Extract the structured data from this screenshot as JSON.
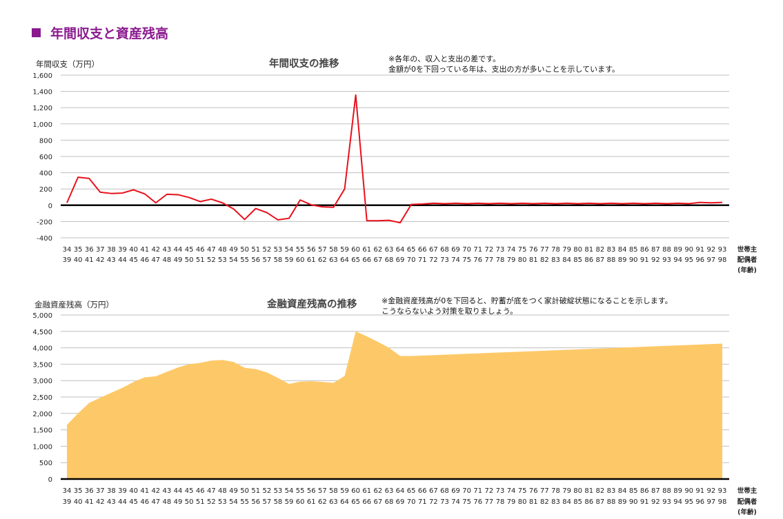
{
  "page": {
    "title_marker": "■",
    "title": "年間収支と資産残高"
  },
  "colors": {
    "title": "#8a1a8e",
    "line": "#e8101a",
    "area": "#fdc968",
    "grid": "#bfbfbf",
    "zero": "#000000"
  },
  "x_axis": {
    "head_ages": [
      "34",
      "35",
      "36",
      "37",
      "38",
      "39",
      "40",
      "41",
      "42",
      "43",
      "44",
      "45",
      "46",
      "47",
      "48",
      "49",
      "50",
      "51",
      "52",
      "53",
      "54",
      "55",
      "56",
      "57",
      "58",
      "59",
      "60",
      "61",
      "62",
      "63",
      "64",
      "65",
      "66",
      "67",
      "68",
      "69",
      "70",
      "71",
      "72",
      "73",
      "74",
      "75",
      "76",
      "77",
      "78",
      "79",
      "80",
      "81",
      "82",
      "83",
      "84",
      "85",
      "86",
      "87",
      "88",
      "89",
      "90",
      "91",
      "92",
      "93"
    ],
    "spouse_ages": [
      "39",
      "40",
      "41",
      "42",
      "43",
      "44",
      "45",
      "46",
      "47",
      "48",
      "49",
      "50",
      "51",
      "52",
      "53",
      "54",
      "55",
      "56",
      "57",
      "58",
      "59",
      "60",
      "61",
      "62",
      "63",
      "64",
      "65",
      "66",
      "67",
      "68",
      "69",
      "70",
      "71",
      "72",
      "73",
      "74",
      "75",
      "76",
      "77",
      "78",
      "79",
      "80",
      "81",
      "82",
      "83",
      "84",
      "85",
      "86",
      "87",
      "88",
      "89",
      "90",
      "91",
      "92",
      "93",
      "94",
      "95",
      "96",
      "97",
      "98"
    ],
    "label_head": "世帯主",
    "label_spouse": "配偶者",
    "label_unit": "(年齢)"
  },
  "chart_data": [
    {
      "type": "line",
      "title": "年間収支の推移",
      "ylabel": "年間収支（万円）",
      "note_lines": [
        "※各年の、収入と支出の差です。",
        "金額が0を下回っている年は、支出の方が多いことを示しています。"
      ],
      "ylim": [
        -400,
        1600
      ],
      "yticks": [
        -400,
        -200,
        0,
        200,
        400,
        600,
        800,
        1000,
        1200,
        1400,
        1600
      ],
      "ytick_labels": [
        "-400",
        "-200",
        "0",
        "200",
        "400",
        "600",
        "800",
        "1,000",
        "1,200",
        "1,400",
        "1,600"
      ],
      "grid": true,
      "series": [
        {
          "values": [
            30,
            345,
            330,
            160,
            145,
            150,
            190,
            140,
            30,
            135,
            130,
            95,
            45,
            75,
            30,
            -45,
            -175,
            -40,
            -90,
            -180,
            -160,
            65,
            5,
            -20,
            -25,
            200,
            1355,
            -190,
            -190,
            -185,
            -215,
            10,
            15,
            25,
            20,
            25,
            20,
            25,
            20,
            25,
            20,
            25,
            20,
            25,
            20,
            25,
            20,
            25,
            20,
            25,
            20,
            25,
            20,
            25,
            20,
            25,
            20,
            35,
            30,
            35
          ]
        }
      ]
    },
    {
      "type": "area",
      "title": "金融資産残高の推移",
      "ylabel": "金融資産残高（万円）",
      "note_lines": [
        "※金融資産残高が0を下回ると、貯蓄が底をつく家計破綻状態になることを示します。",
        "こうならないよう対策を取りましょう。"
      ],
      "ylim": [
        0,
        5000
      ],
      "yticks": [
        0,
        500,
        1000,
        1500,
        2000,
        2500,
        3000,
        3500,
        4000,
        4500,
        5000
      ],
      "ytick_labels": [
        "0",
        "500",
        "1,000",
        "1,500",
        "2,000",
        "2,500",
        "3,000",
        "3,500",
        "4,000",
        "4,500",
        "5,000"
      ],
      "grid": true,
      "series": [
        {
          "values": [
            1650,
            2000,
            2320,
            2480,
            2630,
            2780,
            2960,
            3100,
            3130,
            3270,
            3400,
            3500,
            3540,
            3610,
            3630,
            3570,
            3390,
            3350,
            3250,
            3080,
            2900,
            2970,
            2980,
            2960,
            2930,
            3140,
            4500,
            4350,
            4180,
            4000,
            3750,
            3750,
            3763,
            3776,
            3790,
            3803,
            3817,
            3830,
            3844,
            3857,
            3871,
            3884,
            3898,
            3911,
            3925,
            3938,
            3952,
            3965,
            3979,
            3992,
            4006,
            4019,
            4033,
            4046,
            4060,
            4073,
            4087,
            4100,
            4114,
            4127
          ]
        }
      ]
    }
  ]
}
